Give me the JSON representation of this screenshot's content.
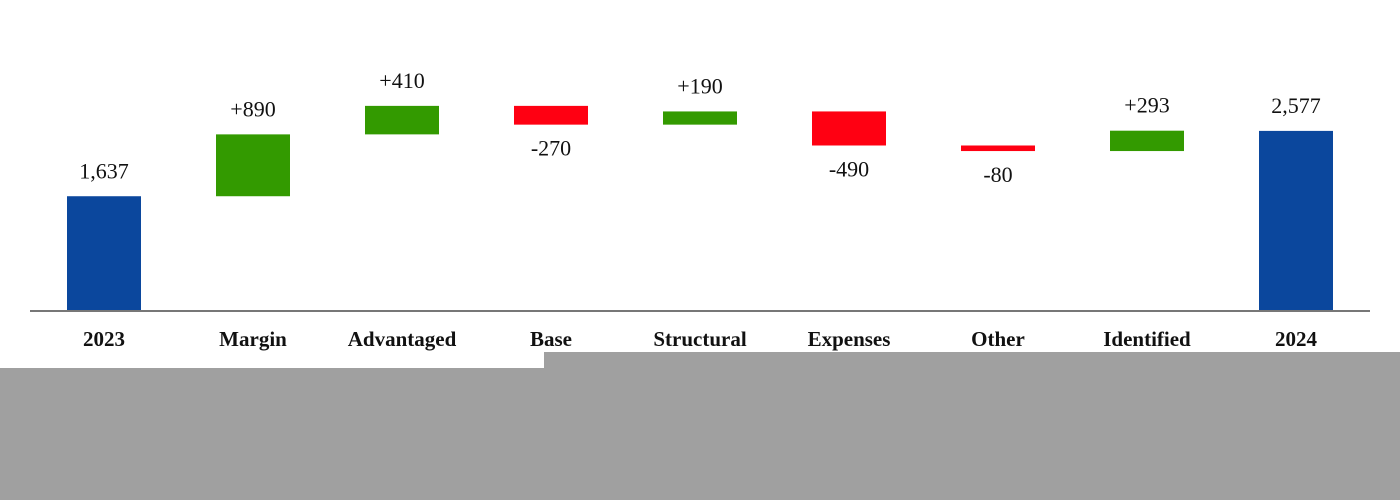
{
  "chart_data": {
    "type": "waterfall",
    "categories": [
      "2023",
      "Margin",
      "Advantaged",
      "Base",
      "Structural",
      "Expenses",
      "Other",
      "Identified",
      "2024"
    ],
    "values": [
      1637,
      890,
      410,
      -270,
      190,
      -490,
      -80,
      293,
      2577
    ],
    "value_labels": [
      "1,637",
      "+890",
      "+410",
      "-270",
      "+190",
      "-490",
      "-80",
      "+293",
      "2,577"
    ],
    "measures": [
      "total",
      "relative",
      "relative",
      "relative",
      "relative",
      "relative",
      "relative",
      "relative",
      "total"
    ],
    "colors": {
      "total": "#0b479d",
      "increase": "#339a00",
      "decrease": "#ff0012"
    },
    "ylim": [
      0,
      4000
    ]
  }
}
